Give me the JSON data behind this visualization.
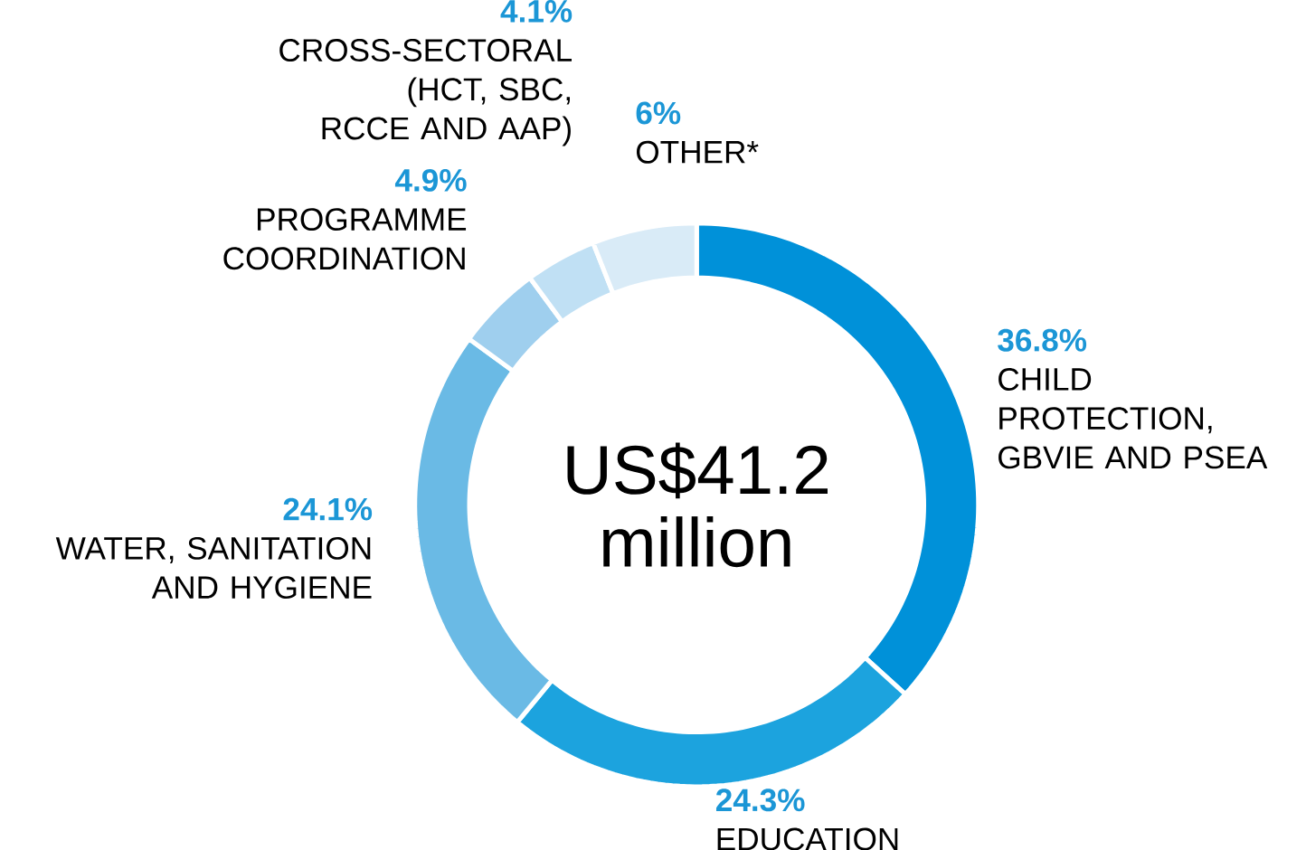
{
  "chart_data": {
    "type": "donut",
    "categories": [
      "CHILD PROTECTION, GBVIE AND PSEA",
      "EDUCATION",
      "WATER, SANITATION AND HYGIENE",
      "PROGRAMME COORDINATION",
      "CROSS-SECTORAL (HCT, SBC, RCCE AND AAP)",
      "OTHER*"
    ],
    "values": [
      36.8,
      24.3,
      24.1,
      4.9,
      4.1,
      6
    ],
    "value_labels": [
      "36.8%",
      "24.3%",
      "24.1%",
      "4.9%",
      "4.1%",
      "6%"
    ],
    "colors": [
      "#0091d9",
      "#1ca3de",
      "#6abae5",
      "#9fcfee",
      "#c0e0f4",
      "#d9ebf7"
    ],
    "annotations": [
      "US$41.2 million"
    ]
  }
}
